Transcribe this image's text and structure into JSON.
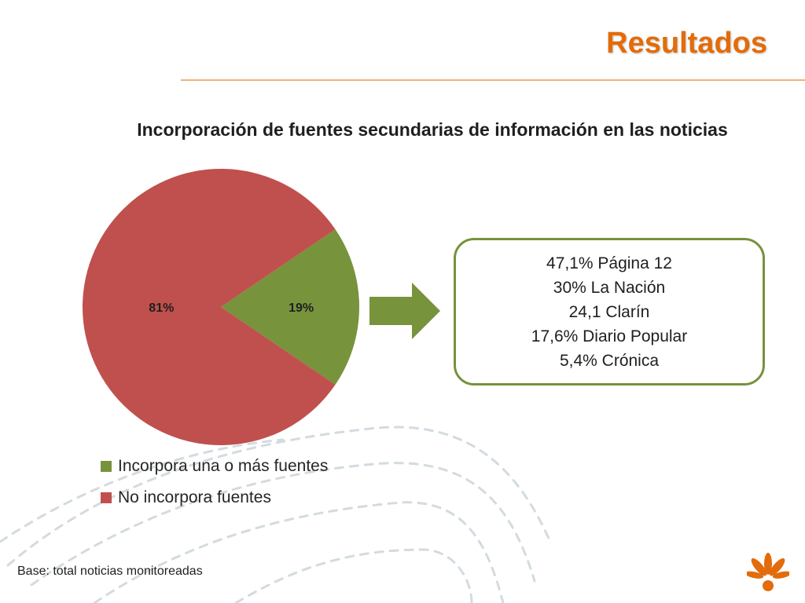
{
  "header": {
    "title": "Resultados"
  },
  "colors": {
    "accent": "#e36c0a",
    "green": "#77933c",
    "red": "#c0504d"
  },
  "chart_data": {
    "type": "pie",
    "title": "Incorporación de fuentes secundarias de información en las noticias",
    "slices": [
      {
        "name": "Incorpora una o más fuentes",
        "value": 19,
        "label": "19%",
        "color": "#77933c"
      },
      {
        "name": "No incorpora fuentes",
        "value": 81,
        "label": "81%",
        "color": "#c0504d"
      }
    ],
    "legend_position": "bottom-left"
  },
  "sources": {
    "lines": [
      "47,1% Página 12",
      "30% La Nación",
      "24,1 Clarín",
      "17,6% Diario Popular",
      "5,4% Crónica"
    ]
  },
  "footer": {
    "base_note": "Base: total noticias monitoreadas"
  }
}
